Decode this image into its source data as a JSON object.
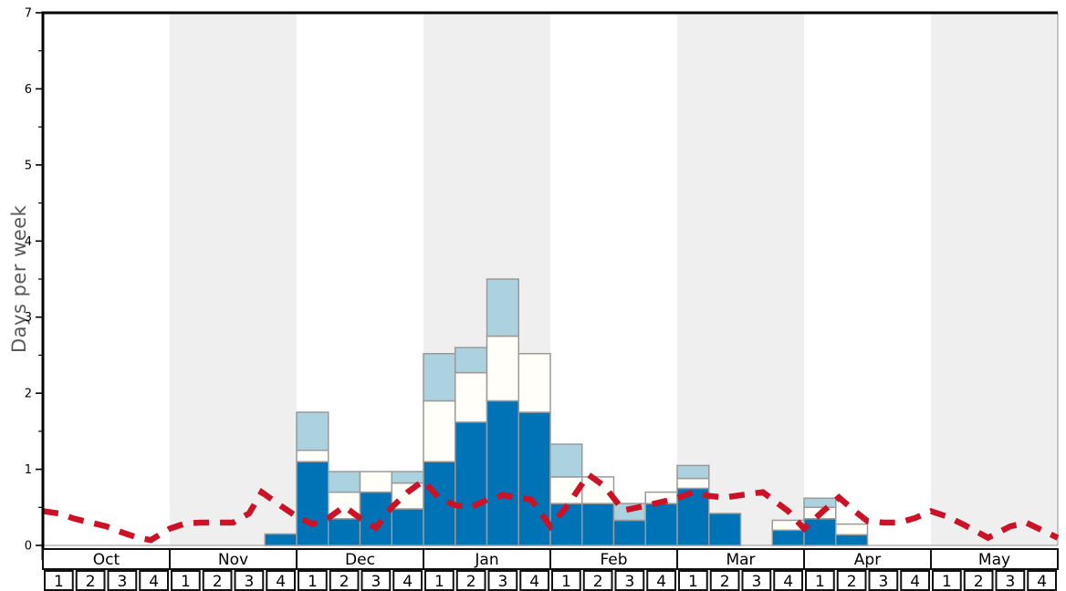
{
  "chart_data": {
    "type": "bar",
    "title": "",
    "ylabel": "Days per week",
    "ylim": [
      0,
      7
    ],
    "y_major_ticks": [
      0,
      1,
      2,
      3,
      4,
      5,
      6,
      7
    ],
    "y_minor_step": 0.5,
    "grid": "off",
    "legend": "none",
    "x_axis": {
      "months": [
        "Oct",
        "Nov",
        "Dec",
        "Jan",
        "Feb",
        "Mar",
        "Apr",
        "May"
      ],
      "weeks_per_month": 4,
      "week_labels": [
        "1",
        "2",
        "3",
        "4"
      ],
      "shaded_months": [
        "Nov",
        "Jan",
        "Mar",
        "May"
      ]
    },
    "series": [
      {
        "name": "dark-blue-days",
        "color": "#0073b6",
        "values": [
          0,
          0,
          0,
          0,
          0,
          0,
          0,
          0.15,
          1.1,
          0.35,
          0.7,
          0.48,
          1.1,
          1.62,
          1.9,
          1.75,
          0.55,
          0.55,
          0.33,
          0.55,
          0.75,
          0.42,
          0,
          0.2,
          0.35,
          0.14,
          0,
          0,
          0,
          0,
          0,
          0
        ]
      },
      {
        "name": "white-days",
        "color": "#fffef8",
        "values": [
          0,
          0,
          0,
          0,
          0,
          0,
          0,
          0,
          0.15,
          0.35,
          0.27,
          0.34,
          0.8,
          0.65,
          0.85,
          0.77,
          0.35,
          0.35,
          0,
          0.15,
          0.13,
          0,
          0,
          0.13,
          0.15,
          0.14,
          0,
          0,
          0,
          0,
          0,
          0
        ]
      },
      {
        "name": "light-blue-days",
        "color": "#abd2de",
        "values": [
          0,
          0,
          0,
          0,
          0,
          0,
          0,
          0,
          0.5,
          0.27,
          0,
          0.15,
          0.62,
          0.33,
          0.75,
          0,
          0.43,
          0,
          0.22,
          0,
          0.17,
          0,
          0,
          0,
          0.12,
          0,
          0,
          0,
          0,
          0,
          0,
          0
        ]
      }
    ],
    "line_series": {
      "name": "average-days-line",
      "style": "dashed",
      "color": "#cb1226",
      "points": [
        [
          0,
          0.45
        ],
        [
          0.5,
          0.42
        ],
        [
          1,
          0.35
        ],
        [
          1.5,
          0.3
        ],
        [
          2,
          0.25
        ],
        [
          2.5,
          0.17
        ],
        [
          3,
          0.1
        ],
        [
          3.4,
          0.07
        ],
        [
          4,
          0.22
        ],
        [
          4.5,
          0.29
        ],
        [
          5,
          0.3
        ],
        [
          5.5,
          0.3
        ],
        [
          6,
          0.3
        ],
        [
          6.5,
          0.42
        ],
        [
          6.9,
          0.7
        ],
        [
          7.5,
          0.52
        ],
        [
          8,
          0.38
        ],
        [
          8.5,
          0.28
        ],
        [
          9,
          0.36
        ],
        [
          9.5,
          0.51
        ],
        [
          10,
          0.36
        ],
        [
          10.5,
          0.23
        ],
        [
          11,
          0.5
        ],
        [
          11.5,
          0.7
        ],
        [
          12,
          0.85
        ],
        [
          12.5,
          0.62
        ],
        [
          13,
          0.53
        ],
        [
          13.5,
          0.5
        ],
        [
          14,
          0.6
        ],
        [
          14.5,
          0.66
        ],
        [
          15,
          0.63
        ],
        [
          15.4,
          0.6
        ],
        [
          16,
          0.25
        ],
        [
          16.5,
          0.5
        ],
        [
          17.2,
          0.93
        ],
        [
          17.7,
          0.78
        ],
        [
          18.3,
          0.46
        ],
        [
          19,
          0.52
        ],
        [
          19.5,
          0.57
        ],
        [
          20,
          0.62
        ],
        [
          20.5,
          0.7
        ],
        [
          21,
          0.65
        ],
        [
          21.5,
          0.63
        ],
        [
          22,
          0.66
        ],
        [
          22.7,
          0.7
        ],
        [
          23.5,
          0.45
        ],
        [
          24,
          0.22
        ],
        [
          24.6,
          0.45
        ],
        [
          25.1,
          0.63
        ],
        [
          25.6,
          0.45
        ],
        [
          26,
          0.32
        ],
        [
          26.5,
          0.3
        ],
        [
          27,
          0.3
        ],
        [
          27.5,
          0.36
        ],
        [
          28,
          0.45
        ],
        [
          28.5,
          0.38
        ],
        [
          29,
          0.28
        ],
        [
          29.8,
          0.1
        ],
        [
          30.5,
          0.25
        ],
        [
          31,
          0.3
        ],
        [
          31.5,
          0.2
        ],
        [
          32,
          0.1
        ]
      ]
    },
    "colors": {
      "shaded_band": "#efefef",
      "bar_border": "#9a9a9a",
      "axis": "#000000",
      "minor_axis": "#aaaaaa",
      "table_border": "#111111",
      "tick_label": "#000000",
      "axis_title": "#58595b"
    }
  }
}
